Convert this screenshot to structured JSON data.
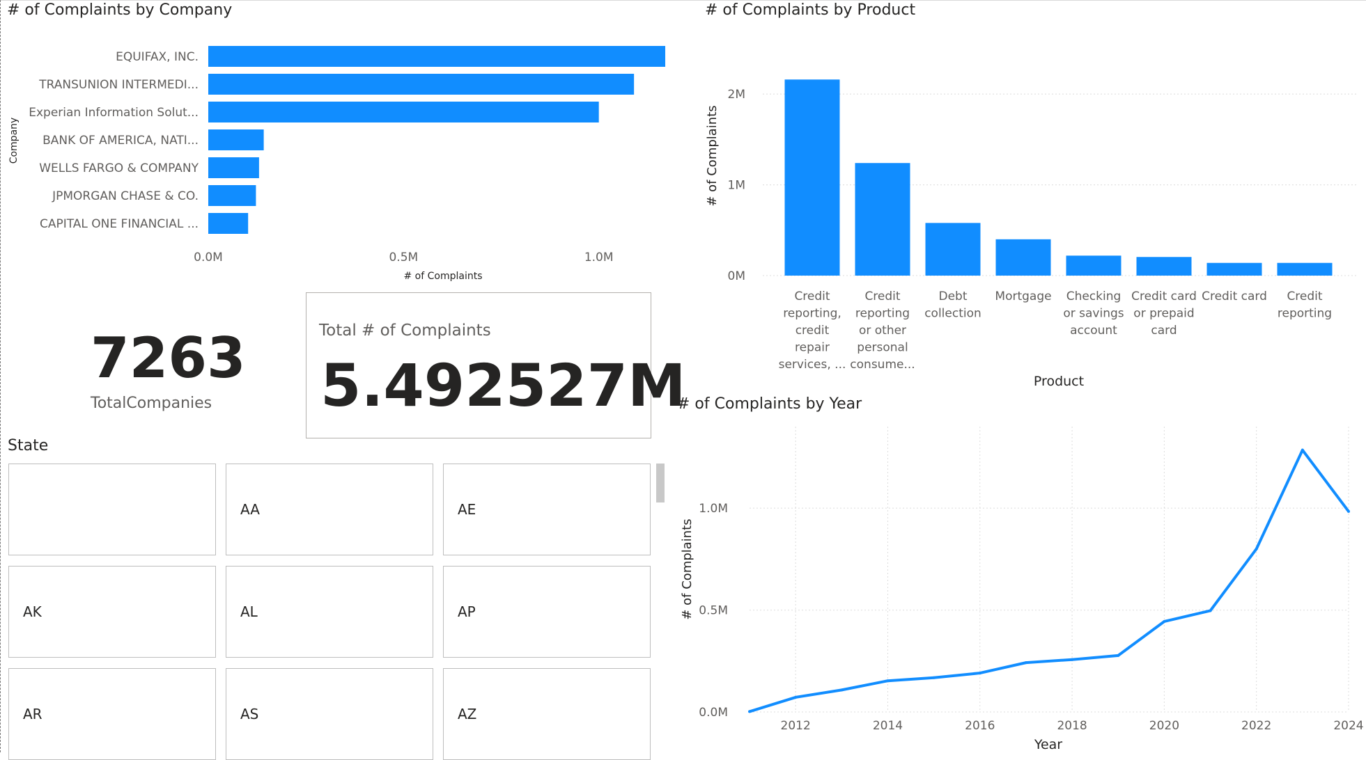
{
  "company_chart": {
    "title": "# of Complaints by Company",
    "y_axis_title": "Company",
    "x_axis_title": "# of Complaints"
  },
  "product_chart": {
    "title": "# of Complaints by Product",
    "y_axis_title": "# of Complaints",
    "x_axis_title": "Product"
  },
  "year_chart": {
    "title": "# of Complaints by Year",
    "y_axis_title": "# of Complaints",
    "x_axis_title": "Year"
  },
  "cards": {
    "total_companies_value": "7263",
    "total_companies_label": "TotalCompanies",
    "total_complaints_label": "Total # of Complaints",
    "total_complaints_value": "5.492527M"
  },
  "state_slicer": {
    "title": "State",
    "items": [
      "",
      "AA",
      "AE",
      "AK",
      "AL",
      "AP",
      "AR",
      "AS",
      "AZ"
    ]
  },
  "colors": {
    "bar": "#118DFF",
    "grid": "#dcdcdc",
    "axis_text": "#605e5c"
  },
  "chart_data": [
    {
      "type": "bar",
      "orientation": "horizontal",
      "title": "# of Complaints by Company",
      "categories": [
        "EQUIFAX, INC.",
        "TRANSUNION INTERMEDI...",
        "Experian Information Solut...",
        "BANK OF AMERICA, NATI...",
        "WELLS FARGO & COMPANY",
        "JPMORGAN CHASE & CO.",
        "CAPITAL ONE FINANCIAL ..."
      ],
      "values": [
        1170000,
        1090000,
        1000000,
        142000,
        130000,
        122000,
        102000
      ],
      "xlabel": "# of Complaints",
      "ylabel": "Company",
      "xlim": [
        0,
        1170000
      ],
      "xticks": [
        0,
        500000,
        1000000
      ],
      "xtick_labels": [
        "0.0M",
        "0.5M",
        "1.0M"
      ]
    },
    {
      "type": "bar",
      "orientation": "vertical",
      "title": "# of Complaints by Product",
      "categories": [
        [
          "Credit",
          "reporting,",
          "credit",
          "repair",
          "services, ..."
        ],
        [
          "Credit",
          "reporting",
          "or other",
          "personal",
          "consume..."
        ],
        [
          "Debt",
          "collection"
        ],
        [
          "Mortgage"
        ],
        [
          "Checking",
          "or savings",
          "account"
        ],
        [
          "Credit card",
          "or prepaid",
          "card"
        ],
        [
          "Credit card"
        ],
        [
          "Credit",
          "reporting"
        ]
      ],
      "values": [
        2160000,
        1240000,
        580000,
        400000,
        220000,
        205000,
        140000,
        140000
      ],
      "xlabel": "Product",
      "ylabel": "# of Complaints",
      "ylim": [
        0,
        2300000
      ],
      "yticks": [
        0,
        1000000,
        2000000
      ],
      "ytick_labels": [
        "0M",
        "1M",
        "2M"
      ]
    },
    {
      "type": "line",
      "title": "# of Complaints by Year",
      "x": [
        2011,
        2012,
        2013,
        2014,
        2015,
        2016,
        2017,
        2018,
        2019,
        2020,
        2021,
        2022,
        2023,
        2024
      ],
      "values": [
        2000,
        72000,
        108000,
        153000,
        168000,
        191000,
        242000,
        257000,
        277000,
        444000,
        497000,
        800000,
        1285000,
        984000
      ],
      "xlabel": "Year",
      "ylabel": "# of Complaints",
      "xlim": [
        2011,
        2024
      ],
      "ylim": [
        0,
        1400000
      ],
      "xticks": [
        2012,
        2014,
        2016,
        2018,
        2020,
        2022,
        2024
      ],
      "xtick_labels": [
        "2012",
        "2014",
        "2016",
        "2018",
        "2020",
        "2022",
        "2024"
      ],
      "yticks": [
        0,
        500000,
        1000000
      ],
      "ytick_labels": [
        "0.0M",
        "0.5M",
        "1.0M"
      ]
    }
  ]
}
